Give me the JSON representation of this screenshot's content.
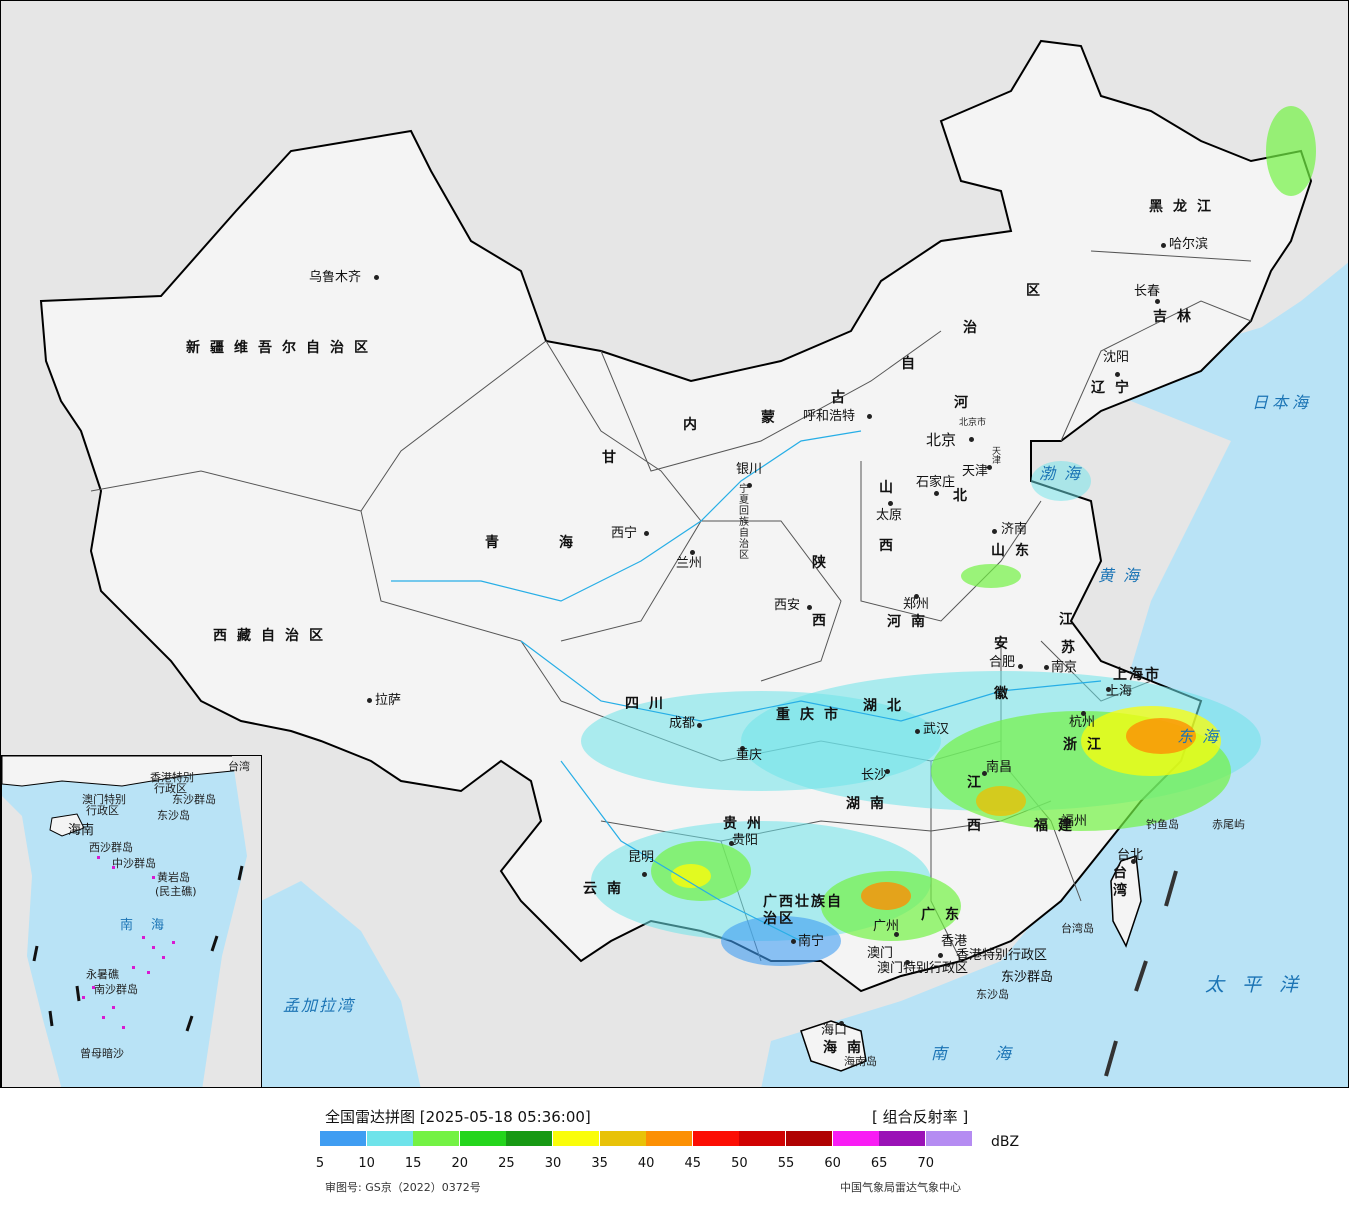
{
  "map_title": "全国雷达拼图 [2025-05-18 05:36:00]",
  "product": "[ 组合反射率 ]",
  "unit": "dBZ",
  "approval": "审图号: GS京（2022）0372号",
  "source": "中国气象局雷达气象中心",
  "legend": {
    "colors": [
      "#3f9df2",
      "#6ee3ea",
      "#74f244",
      "#24d51c",
      "#179914",
      "#fafd0a",
      "#e8c208",
      "#fc9004",
      "#fc0e04",
      "#d00202",
      "#b00202",
      "#f81cf4",
      "#9a12b6",
      "#b58cf2"
    ],
    "ticks": [
      "5",
      "10",
      "15",
      "20",
      "25",
      "30",
      "35",
      "40",
      "45",
      "50",
      "55",
      "60",
      "65",
      "70"
    ]
  },
  "cities": [
    "乌鲁木齐",
    "拉萨",
    "西宁",
    "兰州",
    "银川",
    "呼和浩特",
    "北京",
    "天津",
    "石家庄",
    "太原",
    "济南",
    "郑州",
    "西安",
    "成都",
    "重庆",
    "武汉",
    "合肥",
    "南京",
    "上海",
    "杭州",
    "长沙",
    "南昌",
    "福州",
    "台北",
    "贵阳",
    "昆明",
    "南宁",
    "广州",
    "香港",
    "澳门",
    "海口",
    "沈阳",
    "长春",
    "哈尔滨"
  ],
  "provinces": {
    "xinjiang": "新疆维吾尔自治区",
    "xizang": "西藏自治区",
    "qinghai_a": "青",
    "qinghai_b": "海",
    "gansu": "甘",
    "neimenggu": [
      "内",
      "蒙",
      "古",
      "自",
      "治",
      "区"
    ],
    "heilongjiang": "黑龙江",
    "jilin": "吉林",
    "liaoning": "辽宁",
    "hebei_a": "河",
    "hebei_b": "北",
    "shanxi": [
      "山",
      "西"
    ],
    "shandong": "山东",
    "henan": "河南",
    "shaanxi": [
      "陕",
      "西"
    ],
    "sichuan": "四川",
    "chongqing": "重庆市",
    "hubei": "湖北",
    "hunan": "湖南",
    "jiangxi": [
      "江",
      "西"
    ],
    "anhui": [
      "安",
      "徽"
    ],
    "jiangsu": [
      "江",
      "苏"
    ],
    "zhejiang": "浙江",
    "fujian": "福建",
    "guizhou": "贵州",
    "yunnan": "云南",
    "guangxi": "广西壮族自治区",
    "guangdong": "广东",
    "hainan": "海南",
    "hainan_island": "海南岛",
    "taiwan": "台湾",
    "shanghai": "上海市",
    "ningxia": "宁夏回族自治区",
    "beijing_shi": "北京市",
    "tianjin_shi": "天津",
    "hk_region": "香港特别行政区",
    "macau_region": "澳门特别行政区"
  },
  "seas": {
    "bohai": "渤海",
    "huanghai": "黄海",
    "donghai": "东海",
    "nanhai": "南海",
    "riben": "日本海",
    "taipingyang": "太平洋",
    "mengjiala": "孟加拉湾"
  },
  "islands": {
    "diaoyu": "钓鱼岛",
    "chiwei": "赤尾屿",
    "taiwan_dao": "台湾岛",
    "dongsha_qd": "东沙群岛",
    "dongsha_d": "东沙岛"
  },
  "inset": {
    "taiwan": "台湾",
    "hk": "香港特别",
    "hk2": "行政区",
    "macau": "澳门特别",
    "macau2": "行政区",
    "dongsha": "东沙群岛",
    "dongshadao": "东沙岛",
    "hainan": "海南",
    "xisha": "西沙群岛",
    "zhongsha": "中沙群岛",
    "huangyan": "黄岩岛",
    "minzhu": "(民主礁)",
    "nanhai": "南海",
    "yongshu": "永暑礁",
    "nansha": "南沙群岛",
    "zengmu": "曾母暗沙"
  }
}
